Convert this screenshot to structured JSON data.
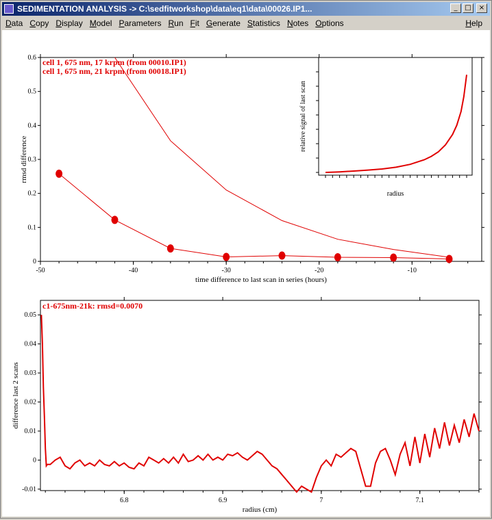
{
  "window": {
    "title": "SEDIMENTATION ANALYSIS -> C:\\sedfitworkshop\\data\\eq1\\data\\00026.IP1...",
    "buttons": {
      "minimize": "_",
      "maximize": "□",
      "close": "×"
    }
  },
  "menu": {
    "items": [
      {
        "label": "Data",
        "underline": "D",
        "rest": "ata"
      },
      {
        "label": "Copy",
        "underline": "C",
        "rest": "opy"
      },
      {
        "label": "Display",
        "underline": "D",
        "rest": "isplay"
      },
      {
        "label": "Model",
        "underline": "M",
        "rest": "odel"
      },
      {
        "label": "Parameters",
        "underline": "P",
        "rest": "arameters"
      },
      {
        "label": "Run",
        "underline": "R",
        "rest": "un"
      },
      {
        "label": "Fit",
        "underline": "F",
        "rest": "it"
      },
      {
        "label": "Generate",
        "underline": "G",
        "rest": "enerate"
      },
      {
        "label": "Statistics",
        "underline": "S",
        "rest": "tatistics"
      },
      {
        "label": "Notes",
        "underline": "N",
        "rest": "otes"
      },
      {
        "label": "Options",
        "underline": "O",
        "rest": "ptions"
      }
    ],
    "help": {
      "label": "Help",
      "underline": "H",
      "rest": "elp"
    }
  },
  "colors": {
    "series": "#e00000",
    "axis": "#000000",
    "titlebar": "#0a246a"
  },
  "chart_data": [
    {
      "type": "line",
      "title": "",
      "xlabel": "time difference to last scan in series (hours)",
      "ylabel": "rmsd difference",
      "xlim": [
        -50,
        -2.5
      ],
      "ylim": [
        0,
        0.6
      ],
      "xticks": [
        -50,
        -40,
        -30,
        -20,
        -10
      ],
      "yticks": [
        0,
        0.1,
        0.2,
        0.3,
        0.4,
        0.5,
        0.6
      ],
      "legend": [
        "cell 1, 675 nm, 17 krpm (from 00010.IP1)",
        "cell 1, 675 nm, 21 krpm (from 00018.IP1)"
      ],
      "series": [
        {
          "name": "cell 1, 675 nm, 17 krpm (from 00010.IP1)",
          "x": [
            -42,
            -36,
            -30,
            -24,
            -18,
            -12,
            -6
          ],
          "y": [
            0.6,
            0.355,
            0.21,
            0.12,
            0.065,
            0.035,
            0.012
          ]
        },
        {
          "name": "cell 1, 675 nm, 21 krpm (from 00018.IP1)",
          "x": [
            -48,
            -42,
            -36,
            -30,
            -24,
            -18,
            -12,
            -6
          ],
          "y": [
            0.258,
            0.122,
            0.038,
            0.013,
            0.017,
            0.012,
            0.011,
            0.007
          ]
        }
      ]
    },
    {
      "type": "line",
      "title": "",
      "xlabel": "radius",
      "ylabel": "relative signal of last scan",
      "x": [
        0,
        0.1,
        0.2,
        0.3,
        0.4,
        0.5,
        0.6,
        0.7,
        0.75,
        0.8,
        0.85,
        0.9,
        0.93,
        0.96,
        0.98,
        1.0
      ],
      "y": [
        0.0,
        0.005,
        0.012,
        0.02,
        0.03,
        0.045,
        0.07,
        0.11,
        0.14,
        0.18,
        0.24,
        0.33,
        0.41,
        0.53,
        0.66,
        0.85
      ],
      "ylim": [
        0,
        1
      ]
    },
    {
      "type": "line",
      "title": "c1-675nm-21k: rmsd=0.0070",
      "xlabel": "radius (cm)",
      "ylabel": "difference last 2 scans",
      "xlim": [
        6.715,
        7.16
      ],
      "ylim": [
        -0.0105,
        0.055
      ],
      "xticks": [
        6.8,
        6.9,
        7,
        7.1
      ],
      "yticks": [
        -0.01,
        0,
        0.01,
        0.02,
        0.03,
        0.04,
        0.05
      ],
      "ytick_labels": [
        "-0.01",
        "0",
        "0.01",
        "0.02",
        "0.03",
        "0.04",
        "0.05"
      ],
      "series": [
        {
          "name": "",
          "x": [
            6.716,
            6.717,
            6.718,
            6.719,
            6.72,
            6.721,
            6.722,
            6.725,
            6.73,
            6.735,
            6.74,
            6.745,
            6.75,
            6.755,
            6.76,
            6.765,
            6.77,
            6.775,
            6.78,
            6.785,
            6.79,
            6.795,
            6.8,
            6.805,
            6.81,
            6.815,
            6.82,
            6.825,
            6.83,
            6.835,
            6.84,
            6.845,
            6.85,
            6.855,
            6.86,
            6.865,
            6.87,
            6.875,
            6.88,
            6.885,
            6.89,
            6.895,
            6.9,
            6.905,
            6.91,
            6.915,
            6.92,
            6.925,
            6.93,
            6.935,
            6.94,
            6.945,
            6.95,
            6.955,
            6.96,
            6.965,
            6.97,
            6.975,
            6.98,
            6.985,
            6.99,
            6.995,
            7.0,
            7.005,
            7.01,
            7.015,
            7.02,
            7.025,
            7.03,
            7.035,
            7.04,
            7.045,
            7.05,
            7.055,
            7.06,
            7.065,
            7.07,
            7.075,
            7.08,
            7.085,
            7.09,
            7.095,
            7.1,
            7.105,
            7.11,
            7.115,
            7.12,
            7.125,
            7.13,
            7.135,
            7.14,
            7.145,
            7.15,
            7.155,
            7.16
          ],
          "y": [
            0.05,
            0.04,
            0.025,
            0.015,
            0.004,
            -0.002,
            -0.0015,
            -0.0015,
            0.0,
            0.001,
            -0.002,
            -0.003,
            -0.001,
            0.0,
            -0.002,
            -0.001,
            -0.002,
            0.0,
            -0.0015,
            -0.002,
            -0.0005,
            -0.002,
            -0.001,
            -0.0025,
            -0.003,
            -0.001,
            -0.002,
            0.001,
            0.0,
            -0.001,
            0.0005,
            -0.001,
            0.001,
            -0.001,
            0.002,
            -0.0005,
            0.0,
            0.0015,
            0.0,
            0.002,
            0.0,
            0.001,
            0.0,
            0.002,
            0.0015,
            0.0025,
            0.001,
            0.0,
            0.0015,
            0.003,
            0.002,
            0.0,
            -0.002,
            -0.003,
            -0.005,
            -0.007,
            -0.009,
            -0.011,
            -0.009,
            -0.01,
            -0.011,
            -0.006,
            -0.002,
            0.0,
            -0.002,
            0.002,
            0.001,
            0.0025,
            0.004,
            0.003,
            -0.003,
            -0.009,
            -0.009,
            -0.001,
            0.003,
            0.004,
            0.0,
            -0.005,
            0.002,
            0.006,
            -0.002,
            0.008,
            -0.001,
            0.009,
            0.001,
            0.011,
            0.004,
            0.013,
            0.005,
            0.012,
            0.006,
            0.014,
            0.008,
            0.016,
            0.01
          ]
        }
      ]
    }
  ]
}
